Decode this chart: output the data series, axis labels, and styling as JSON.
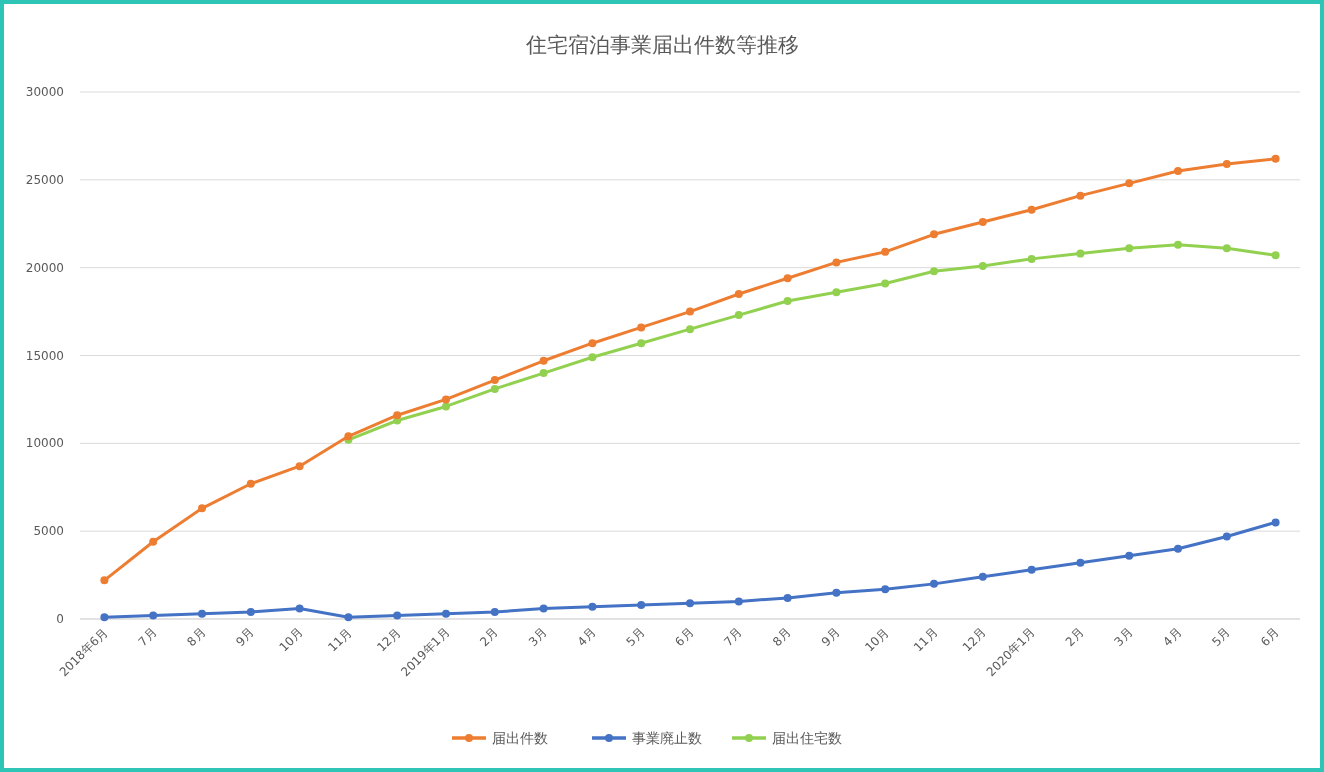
{
  "chart_data": {
    "type": "line",
    "title": "住宅宿泊事業届出件数等推移",
    "categories": [
      "2018年6月",
      "7月",
      "8月",
      "9月",
      "10月",
      "11月",
      "12月",
      "2019年1月",
      "2月",
      "3月",
      "4月",
      "5月",
      "6月",
      "7月",
      "8月",
      "9月",
      "10月",
      "11月",
      "12月",
      "2020年1月",
      "2月",
      "3月",
      "4月",
      "5月",
      "6月"
    ],
    "series": [
      {
        "name": "届出件数",
        "color": "#ed7d31",
        "values": [
          2200,
          4400,
          6300,
          7700,
          8700,
          10400,
          11600,
          12500,
          13600,
          14700,
          15700,
          16600,
          17500,
          18500,
          19400,
          20300,
          20900,
          21900,
          22600,
          23300,
          24100,
          24800,
          25500,
          25900,
          26200
        ]
      },
      {
        "name": "事業廃止数",
        "color": "#4472c4",
        "values": [
          100,
          200,
          300,
          400,
          600,
          100,
          200,
          300,
          400,
          600,
          700,
          800,
          900,
          1000,
          1200,
          1500,
          1700,
          2000,
          2400,
          2800,
          3200,
          3600,
          4000,
          4700,
          5500
        ]
      },
      {
        "name": "届出住宅数",
        "color": "#92d050",
        "values": [
          null,
          null,
          null,
          null,
          null,
          10200,
          11300,
          12100,
          13100,
          14000,
          14900,
          15700,
          16500,
          17300,
          18100,
          18600,
          19100,
          19800,
          20100,
          20500,
          20800,
          21100,
          21300,
          21100,
          20700
        ]
      }
    ],
    "ylim": [
      0,
      30000
    ],
    "yticks": [
      0,
      5000,
      10000,
      15000,
      20000,
      25000,
      30000
    ],
    "grid": "y",
    "legend": "bottom",
    "marker": "circle"
  }
}
